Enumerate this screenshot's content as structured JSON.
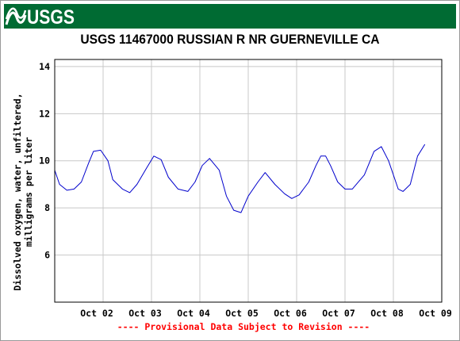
{
  "header": {
    "logo_text": "USGS",
    "logo_color": "#ffffff",
    "banner_color": "#006b33"
  },
  "chart_data": {
    "type": "line",
    "title": "USGS 11467000 RUSSIAN R NR GUERNEVILLE CA",
    "ylabel_lines": [
      "Dissolved oxygen, water, unfiltered,",
      "milligrams per liter"
    ],
    "xlabel": "",
    "footnote": "---- Provisional Data Subject to Revision ----",
    "ylim": [
      4.0,
      14.3
    ],
    "yticks": [
      4,
      6,
      8,
      10,
      12,
      14
    ],
    "ytick_labels": [
      "",
      "6",
      "8",
      "10",
      "12",
      "14"
    ],
    "x_unit": "days since Oct 01 00:00",
    "xlim": [
      0.0,
      8.0
    ],
    "xticks": [
      1,
      2,
      3,
      4,
      5,
      6,
      7,
      8
    ],
    "xtick_labels": [
      "Oct 02",
      "Oct 03",
      "Oct 04",
      "Oct 05",
      "Oct 06",
      "Oct 07",
      "Oct 08",
      "Oct 09"
    ],
    "grid": true,
    "line_color": "#0000cc",
    "series": [
      {
        "name": "Dissolved oxygen",
        "x": [
          0.0,
          0.1,
          0.25,
          0.4,
          0.55,
          0.7,
          0.8,
          0.95,
          1.1,
          1.2,
          1.4,
          1.55,
          1.7,
          1.9,
          2.05,
          2.2,
          2.35,
          2.55,
          2.75,
          2.9,
          3.05,
          3.2,
          3.4,
          3.55,
          3.7,
          3.85,
          4.0,
          4.2,
          4.35,
          4.55,
          4.75,
          4.9,
          5.05,
          5.25,
          5.4,
          5.5,
          5.6,
          5.7,
          5.85,
          6.0,
          6.15,
          6.4,
          6.6,
          6.75,
          6.9,
          7.1,
          7.2,
          7.35,
          7.5,
          7.65
        ],
        "y": [
          9.6,
          9.0,
          8.75,
          8.8,
          9.1,
          9.9,
          10.4,
          10.45,
          10.0,
          9.2,
          8.8,
          8.65,
          9.0,
          9.7,
          10.2,
          10.05,
          9.3,
          8.8,
          8.7,
          9.1,
          9.8,
          10.1,
          9.6,
          8.5,
          7.9,
          7.8,
          8.5,
          9.1,
          9.5,
          9.0,
          8.6,
          8.4,
          8.55,
          9.1,
          9.8,
          10.2,
          10.2,
          9.8,
          9.1,
          8.8,
          8.8,
          9.4,
          10.4,
          10.6,
          10.0,
          8.8,
          8.7,
          9.0,
          10.2,
          10.7
        ]
      }
    ]
  }
}
